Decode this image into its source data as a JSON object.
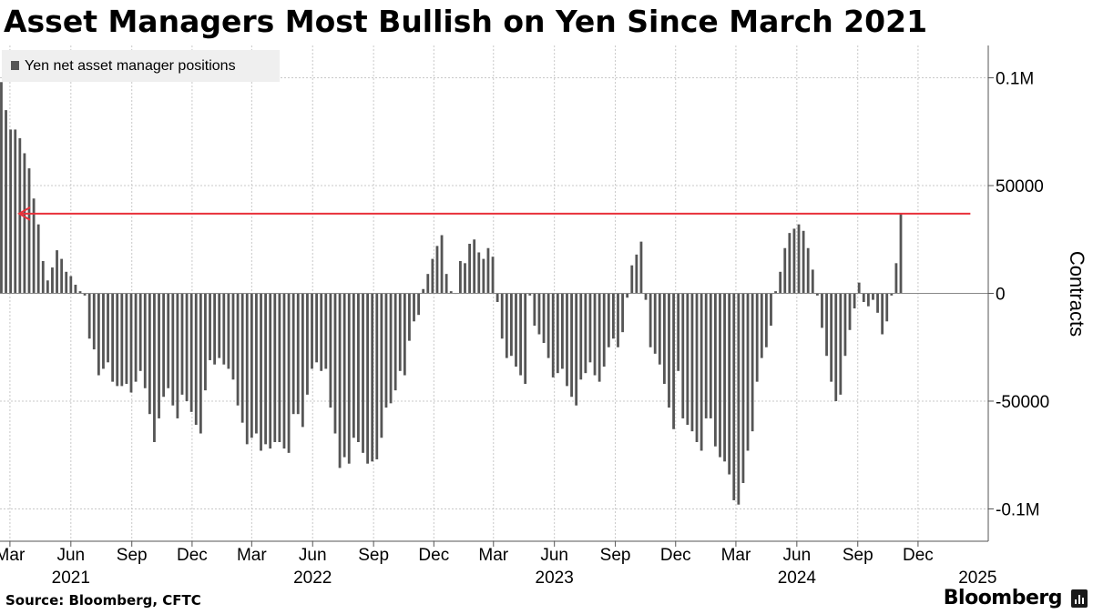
{
  "title": "Asset Managers Most Bullish on Yen Since March 2021",
  "legend": {
    "label": "Yen net asset manager positions"
  },
  "footer": {
    "source": "Source: Bloomberg, CFTC",
    "brand": "Bloomberg"
  },
  "colors": {
    "bar": "#555555",
    "arrow": "#e8303a",
    "grid": "#c8c8c8",
    "legend_bg": "#efefef"
  },
  "icons": {
    "brand": "bloomberg-chart-icon"
  },
  "chart_data": {
    "type": "bar",
    "ylabel": "Contracts",
    "ylim": [
      -115000,
      115000
    ],
    "y_ticks": [
      {
        "value": 100000,
        "label": "0.1M"
      },
      {
        "value": 50000,
        "label": "50000"
      },
      {
        "value": 0,
        "label": "0"
      },
      {
        "value": -50000,
        "label": "-50000"
      },
      {
        "value": -100000,
        "label": "-0.1M"
      }
    ],
    "x_ticks": [
      {
        "date": "2021-03-01",
        "label": "Mar"
      },
      {
        "date": "2021-06-01",
        "label": "Jun"
      },
      {
        "date": "2021-09-01",
        "label": "Sep"
      },
      {
        "date": "2021-12-01",
        "label": "Dec"
      },
      {
        "date": "2022-03-01",
        "label": "Mar"
      },
      {
        "date": "2022-06-01",
        "label": "Jun"
      },
      {
        "date": "2022-09-01",
        "label": "Sep"
      },
      {
        "date": "2022-12-01",
        "label": "Dec"
      },
      {
        "date": "2023-03-01",
        "label": "Mar"
      },
      {
        "date": "2023-06-01",
        "label": "Jun"
      },
      {
        "date": "2023-09-01",
        "label": "Sep"
      },
      {
        "date": "2023-12-01",
        "label": "Dec"
      },
      {
        "date": "2024-03-01",
        "label": "Mar"
      },
      {
        "date": "2024-06-01",
        "label": "Jun"
      },
      {
        "date": "2024-09-01",
        "label": "Sep"
      },
      {
        "date": "2024-12-01",
        "label": "Dec"
      }
    ],
    "year_labels": [
      {
        "date": "2021-06-01",
        "label": "2021"
      },
      {
        "date": "2022-06-01",
        "label": "2022"
      },
      {
        "date": "2023-06-01",
        "label": "2023"
      },
      {
        "date": "2024-06-01",
        "label": "2024"
      },
      {
        "date": "2025-03-01",
        "label": "2025"
      }
    ],
    "x_start": "2021-02-14",
    "x_end": "2025-03-17",
    "grid": true,
    "legend_position": "top-left",
    "annotation": {
      "type": "arrow",
      "value": 37000,
      "from": "2025-02-18",
      "to": "2021-03-15"
    },
    "series": [
      {
        "start": "2021-02-16",
        "interval_days": 7,
        "values": [
          98000,
          85000,
          76000,
          76000,
          72000,
          65000,
          58000,
          44000,
          32000,
          15000,
          6000,
          12000,
          20000,
          16000,
          10000,
          8000,
          4000,
          1000,
          -1000,
          -21000,
          -26000,
          -38000,
          -35000,
          -32000,
          -41000,
          -43000,
          -43000,
          -42000,
          -46000,
          -41000,
          -36000,
          -44000,
          -56000,
          -69000,
          -58000,
          -48000,
          -44000,
          -52000,
          -58000,
          -47000,
          -50000,
          -55000,
          -61000,
          -65000,
          -45000,
          -31000,
          -33000,
          -30000,
          -33000,
          -35000,
          -40000,
          -52000,
          -60000,
          -70000,
          -67000,
          -65000,
          -73000,
          -70000,
          -72000,
          -69000,
          -69000,
          -72000,
          -74000,
          -56000,
          -56000,
          -62000,
          -47000,
          -35000,
          -32000,
          -36000,
          -35000,
          -53000,
          -65000,
          -81000,
          -76000,
          -79000,
          -67000,
          -69000,
          -74000,
          -79000,
          -78000,
          -77000,
          -67000,
          -53000,
          -51000,
          -45000,
          -36000,
          -38000,
          -22000,
          -13000,
          -10000,
          2000,
          9000,
          16000,
          22000,
          27000,
          9000,
          1000,
          0,
          15000,
          14000,
          23000,
          25000,
          19000,
          16000,
          21000,
          17000,
          -4000,
          -21000,
          -30000,
          -29000,
          -34000,
          -38000,
          -42000,
          -1000,
          -15000,
          -19000,
          -23000,
          -30000,
          -39000,
          -37000,
          -35000,
          -43000,
          -48000,
          -52000,
          -40000,
          -37000,
          -32000,
          -38000,
          -41000,
          -34000,
          -25000,
          -21000,
          -25000,
          -18000,
          -2000,
          13000,
          18000,
          24000,
          -3000,
          -25000,
          -28000,
          -33000,
          -42000,
          -53000,
          -63000,
          -36000,
          -58000,
          -61000,
          -64000,
          -69000,
          -73000,
          -58000,
          -58000,
          -71000,
          -76000,
          -78000,
          -84000,
          -96000,
          -98000,
          -88000,
          -73000,
          -64000,
          -41000,
          -30000,
          -25000,
          -15000,
          1000,
          10000,
          21000,
          28000,
          30000,
          32000,
          29000,
          21000,
          11000,
          -1000,
          -16000,
          -29000,
          -41000,
          -50000,
          -47000,
          -29000,
          -17000,
          -7000,
          5000,
          -4000,
          -6000,
          -3000,
          -9000,
          -19000,
          -13000,
          -1000,
          14000,
          37000
        ]
      }
    ]
  }
}
